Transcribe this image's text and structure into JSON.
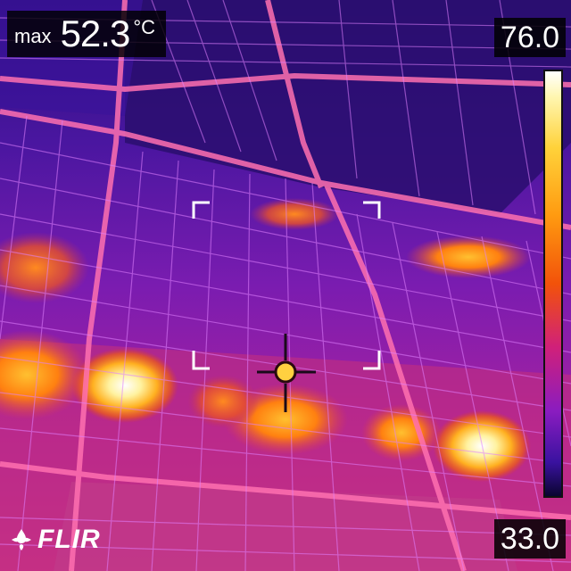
{
  "measurement": {
    "label": "max",
    "value": "52.3",
    "unit": "°C"
  },
  "scale": {
    "max": "76.0",
    "min": "33.0",
    "palette": "iron"
  },
  "brand": {
    "logo_text": "FLIR",
    "logo_icon": "flir-flame-icon"
  },
  "overlay": {
    "spot_meter_icon": "crosshair-icon",
    "measurement_box_icon": "corner-brackets-icon"
  },
  "colors": {
    "cold": "#2a0a5a",
    "mid": "#c02a9a",
    "warm": "#ff8a10",
    "hot": "#ffffff"
  }
}
